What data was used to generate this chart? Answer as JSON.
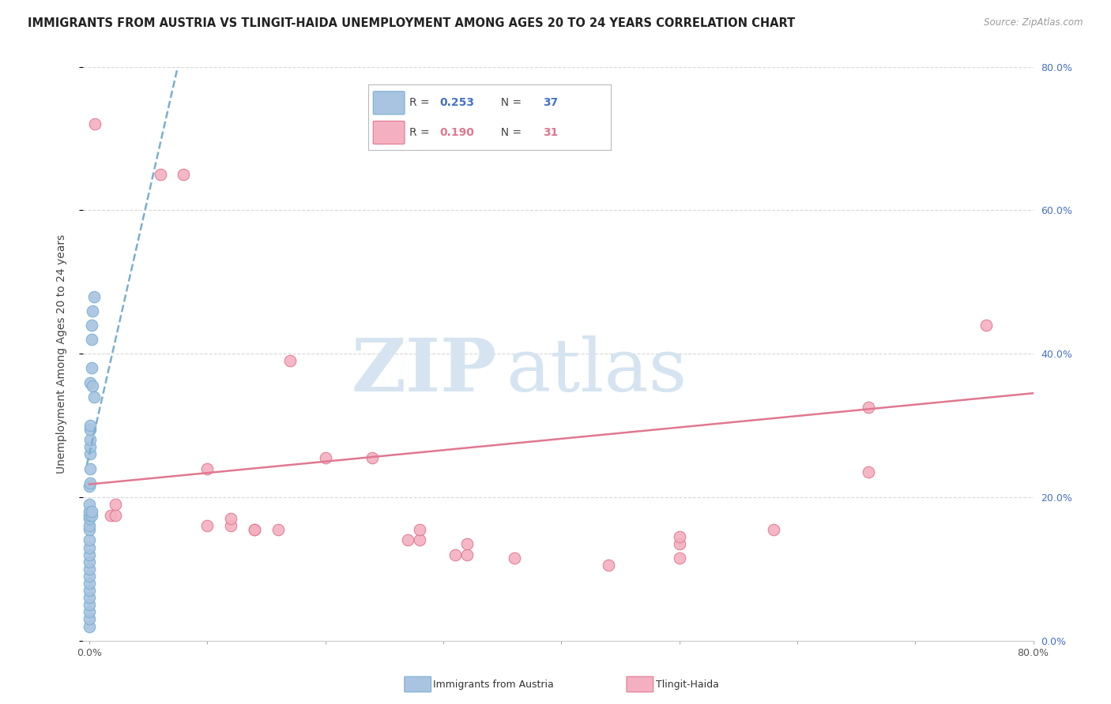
{
  "title": "IMMIGRANTS FROM AUSTRIA VS TLINGIT-HAIDA UNEMPLOYMENT AMONG AGES 20 TO 24 YEARS CORRELATION CHART",
  "source": "Source: ZipAtlas.com",
  "ylabel": "Unemployment Among Ages 20 to 24 years",
  "right_yticklabels": [
    "0.0%",
    "20.0%",
    "40.0%",
    "60.0%",
    "80.0%"
  ],
  "right_ytick_vals": [
    0.0,
    0.2,
    0.4,
    0.6,
    0.8
  ],
  "blue_scatter_x": [
    0.0,
    0.0,
    0.0,
    0.0,
    0.0,
    0.0,
    0.0,
    0.0,
    0.0,
    0.0,
    0.0,
    0.0,
    0.0,
    0.0,
    0.0,
    0.0,
    0.0,
    0.0,
    0.0,
    0.0,
    0.001,
    0.001,
    0.001,
    0.001,
    0.001,
    0.001,
    0.001,
    0.001,
    0.002,
    0.002,
    0.002,
    0.002,
    0.002,
    0.003,
    0.003,
    0.004,
    0.004
  ],
  "blue_scatter_y": [
    0.02,
    0.03,
    0.04,
    0.05,
    0.06,
    0.07,
    0.08,
    0.09,
    0.1,
    0.11,
    0.12,
    0.13,
    0.14,
    0.155,
    0.16,
    0.17,
    0.175,
    0.18,
    0.19,
    0.215,
    0.22,
    0.24,
    0.26,
    0.27,
    0.28,
    0.295,
    0.3,
    0.36,
    0.175,
    0.18,
    0.38,
    0.42,
    0.44,
    0.355,
    0.46,
    0.34,
    0.48
  ],
  "pink_scatter_x": [
    0.005,
    0.018,
    0.022,
    0.022,
    0.06,
    0.08,
    0.1,
    0.1,
    0.12,
    0.12,
    0.14,
    0.14,
    0.16,
    0.17,
    0.2,
    0.24,
    0.27,
    0.28,
    0.28,
    0.31,
    0.32,
    0.32,
    0.36,
    0.44,
    0.5,
    0.5,
    0.5,
    0.58,
    0.66,
    0.66,
    0.76
  ],
  "pink_scatter_y": [
    0.72,
    0.175,
    0.175,
    0.19,
    0.65,
    0.65,
    0.16,
    0.24,
    0.16,
    0.17,
    0.155,
    0.155,
    0.155,
    0.39,
    0.255,
    0.255,
    0.14,
    0.14,
    0.155,
    0.12,
    0.12,
    0.135,
    0.115,
    0.105,
    0.115,
    0.135,
    0.145,
    0.155,
    0.235,
    0.325,
    0.44
  ],
  "blue_line_x": [
    -0.002,
    0.075
  ],
  "blue_line_y": [
    0.245,
    0.8
  ],
  "pink_line_x": [
    0.0,
    0.8
  ],
  "pink_line_y": [
    0.218,
    0.345
  ],
  "xlim": [
    -0.005,
    0.8
  ],
  "ylim": [
    0.0,
    0.8
  ],
  "xtick_vals": [
    0.0,
    0.1,
    0.2,
    0.3,
    0.4,
    0.5,
    0.6,
    0.7,
    0.8
  ],
  "xticklabels": [
    "0.0%",
    "",
    "",
    "",
    "",
    "",
    "",
    "",
    "80.0%"
  ],
  "ytick_vals": [
    0.0,
    0.2,
    0.4,
    0.6,
    0.8
  ],
  "grid_color": "#d8d8d8",
  "bg_color": "#ffffff",
  "blue_scatter_color": "#a8c4e0",
  "blue_scatter_edge": "#7aafd0",
  "pink_scatter_color": "#f4b0c0",
  "pink_scatter_edge": "#e07890",
  "blue_line_color": "#7aafd0",
  "pink_line_color": "#e07890",
  "watermark_zip_color": "#d5e4f0",
  "watermark_atlas_color": "#d5e4f0",
  "title_color": "#222222",
  "source_color": "#999999",
  "right_tick_color": "#4472c4",
  "ylabel_color": "#444444"
}
